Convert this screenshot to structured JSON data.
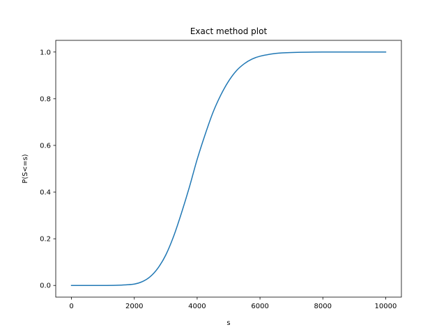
{
  "chart_data": {
    "type": "line",
    "title": "Exact method plot",
    "xlabel": "s",
    "ylabel": "P(S<=s)",
    "xlim": [
      -500,
      10500
    ],
    "ylim": [
      -0.05,
      1.05
    ],
    "xticks": [
      0,
      2000,
      4000,
      6000,
      8000,
      10000
    ],
    "xtick_labels": [
      "0",
      "2000",
      "4000",
      "6000",
      "8000",
      "10000"
    ],
    "yticks": [
      0.0,
      0.2,
      0.4,
      0.6,
      0.8,
      1.0
    ],
    "ytick_labels": [
      "0.0",
      "0.2",
      "0.4",
      "0.6",
      "0.8",
      "1.0"
    ],
    "grid": false,
    "legend": "none",
    "series": [
      {
        "color": "#1f77b4",
        "x": [
          0,
          1000,
          1500,
          2000,
          2250,
          2500,
          2750,
          3000,
          3250,
          3500,
          3750,
          4000,
          4250,
          4500,
          4750,
          5000,
          5250,
          5500,
          5750,
          6000,
          6500,
          7000,
          8000,
          9000,
          10000
        ],
        "y": [
          0.0,
          0.0,
          0.001,
          0.006,
          0.016,
          0.037,
          0.074,
          0.13,
          0.21,
          0.31,
          0.42,
          0.54,
          0.645,
          0.74,
          0.815,
          0.875,
          0.92,
          0.95,
          0.97,
          0.982,
          0.994,
          0.998,
          1.0,
          1.0,
          1.0
        ]
      }
    ]
  }
}
